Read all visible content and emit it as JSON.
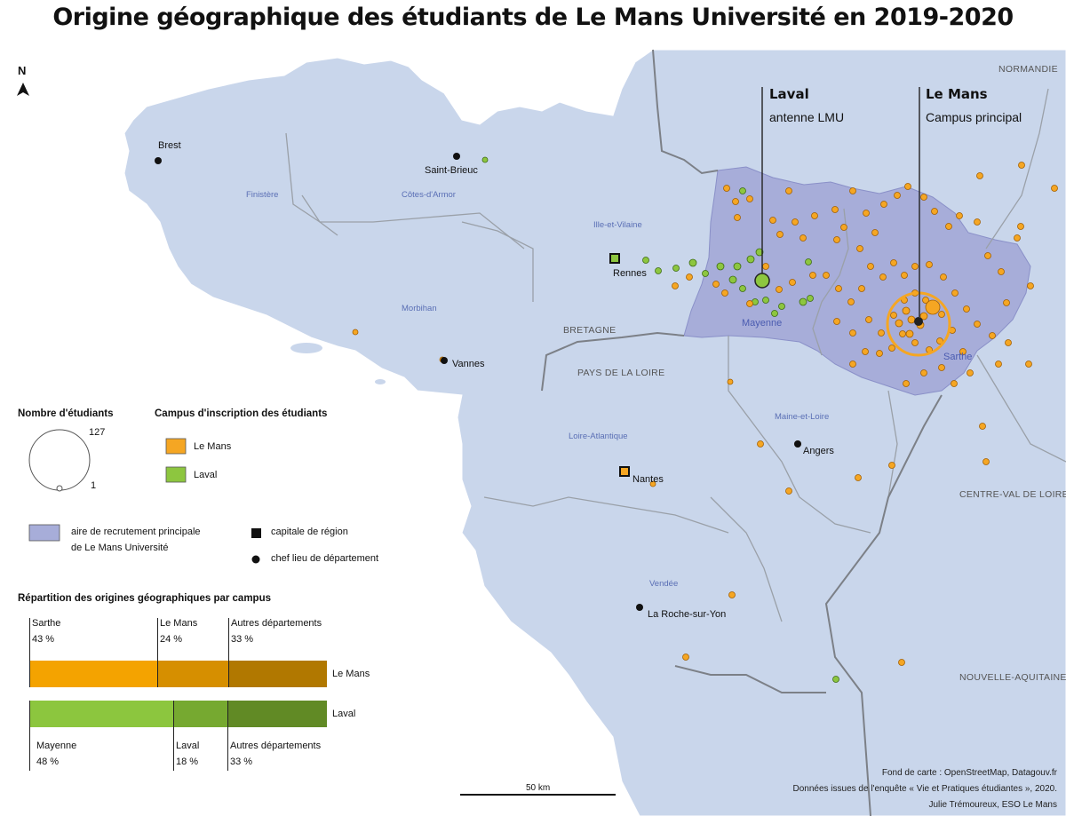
{
  "title": "Origine géographique des étudiants de Le Mans Université en 2019-2020",
  "north": "N",
  "cities": {
    "brest": "Brest",
    "saint_brieuc": "Saint-Brieuc",
    "rennes": "Rennes",
    "vannes": "Vannes",
    "nantes": "Nantes",
    "angers": "Angers",
    "la_roche": "La Roche-sur-Yon"
  },
  "departments": {
    "finistere": "Finistère",
    "cotes_armor": "Côtes-d'Armor",
    "ille_vilaine": "Ille-et-Vilaine",
    "morbihan": "Morbihan",
    "mayenne": "Mayenne",
    "sarthe": "Sarthe",
    "loire_atlantique": "Loire-Atlantique",
    "maine_loire": "Maine-et-Loire",
    "vendee": "Vendée"
  },
  "regions": {
    "normandie": "NORMANDIE",
    "bretagne": "BRETAGNE",
    "pays_loire": "PAYS DE LA LOIRE",
    "centre": "CENTRE-VAL DE LOIRE",
    "aquitaine": "NOUVELLE-AQUITAINE"
  },
  "callouts": {
    "laval_name": "Laval",
    "laval_sub": "antenne LMU",
    "lemans_name": "Le Mans",
    "lemans_sub": "Campus principal"
  },
  "legend": {
    "size_title": "Nombre d'étudiants",
    "size_max": "127",
    "size_min": "1",
    "campus_title": "Campus d'inscription des étudiants",
    "campus_lemans": "Le Mans",
    "campus_laval": "Laval",
    "area_line1": "aire de recrutement principale",
    "area_line2": "de Le Mans Université",
    "capitale": "capitale de région",
    "chef_lieu": "chef lieu de département",
    "colors": {
      "le_mans": "#f5a623",
      "laval": "#8dc63f",
      "area": "#a7add9",
      "land": "#c9d6eb"
    }
  },
  "distribution": {
    "title": "Répartition des origines géographiques par campus",
    "le_mans": {
      "label": "Le Mans",
      "segments": [
        {
          "name": "Sarthe",
          "pct_label": "43 %",
          "value": 43,
          "color": "#f4a300"
        },
        {
          "name": "Le Mans",
          "pct_label": "24 %",
          "value": 24,
          "color": "#d68f00"
        },
        {
          "name": "Autres départements",
          "pct_label": "33 %",
          "value": 33,
          "color": "#b17800"
        }
      ]
    },
    "laval": {
      "label": "Laval",
      "segments": [
        {
          "name": "Mayenne",
          "pct_label": "48 %",
          "value": 48,
          "color": "#8cc63e"
        },
        {
          "name": "Laval",
          "pct_label": "18 %",
          "value": 18,
          "color": "#76a930"
        },
        {
          "name": "Autres départements",
          "pct_label": "33 %",
          "value": 33,
          "color": "#618a25"
        }
      ]
    }
  },
  "scale": "50 km",
  "credits": {
    "line1": "Fond de carte : OpenStreetMap, Datagouv.fr",
    "line2": "Données issues de l'enquête « Vie et Pratiques étudiantes », 2020.",
    "line3": "Julie Trémoureux, ESO Le Mans"
  }
}
